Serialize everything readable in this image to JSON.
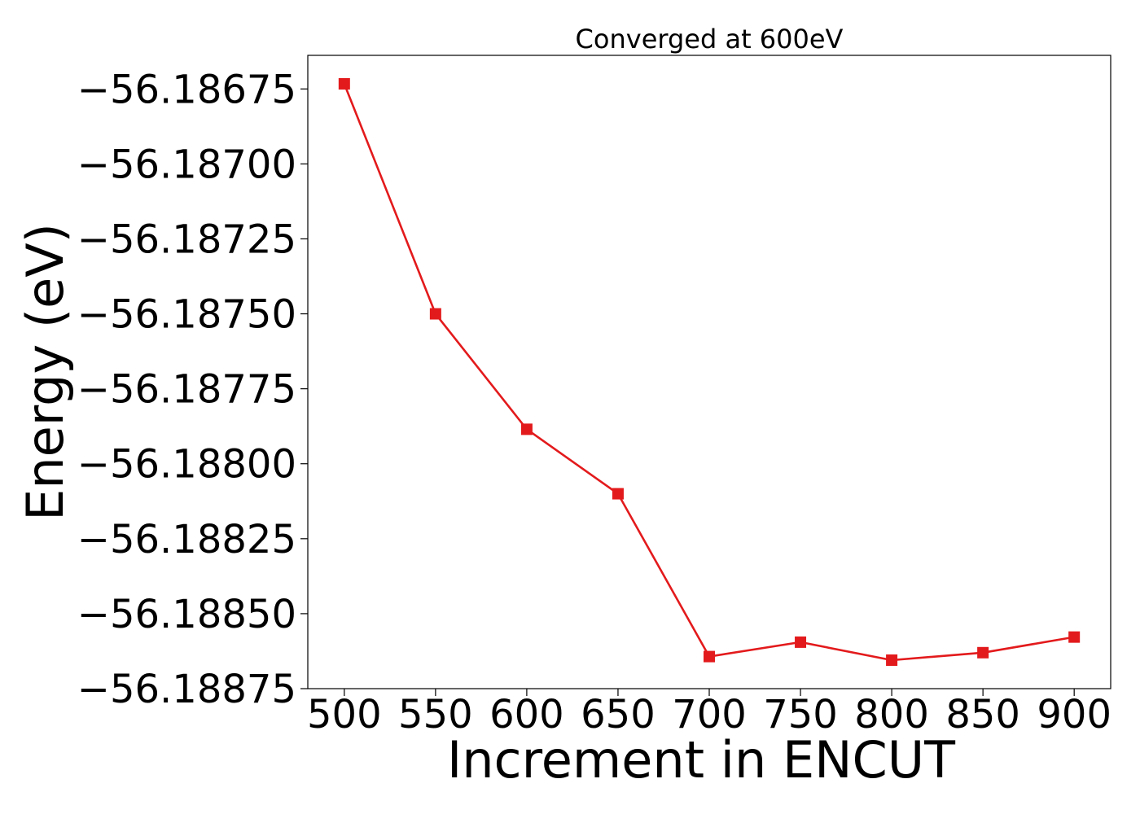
{
  "chart_data": {
    "type": "line",
    "title": "Converged at 600eV",
    "xlabel": "Increment in ENCUT",
    "ylabel": "Energy (eV)",
    "x": [
      500,
      550,
      600,
      650,
      700,
      750,
      800,
      850,
      900
    ],
    "series": [
      {
        "values": [
          -56.186733,
          -56.1875,
          -56.187885,
          -56.1881,
          -56.188643,
          -56.188595,
          -56.188655,
          -56.18863,
          -56.188578
        ],
        "color": "#e31a1c",
        "marker": "square"
      }
    ],
    "xticks": [
      500,
      550,
      600,
      650,
      700,
      750,
      800,
      850,
      900
    ],
    "xtick_labels": [
      "500",
      "550",
      "600",
      "650",
      "700",
      "750",
      "800",
      "850",
      "900"
    ],
    "yticks": [
      -56.18675,
      -56.187,
      -56.18725,
      -56.1875,
      -56.18775,
      -56.188,
      -56.18825,
      -56.1885,
      -56.18875
    ],
    "ytick_labels": [
      "−56.18675",
      "−56.18700",
      "−56.18725",
      "−56.18750",
      "−56.18775",
      "−56.18800",
      "−56.18825",
      "−56.18850",
      "−56.18875"
    ],
    "xlim": [
      480,
      920
    ],
    "ylim": [
      -56.18875,
      -56.186638
    ],
    "grid": false,
    "legend": "none"
  }
}
